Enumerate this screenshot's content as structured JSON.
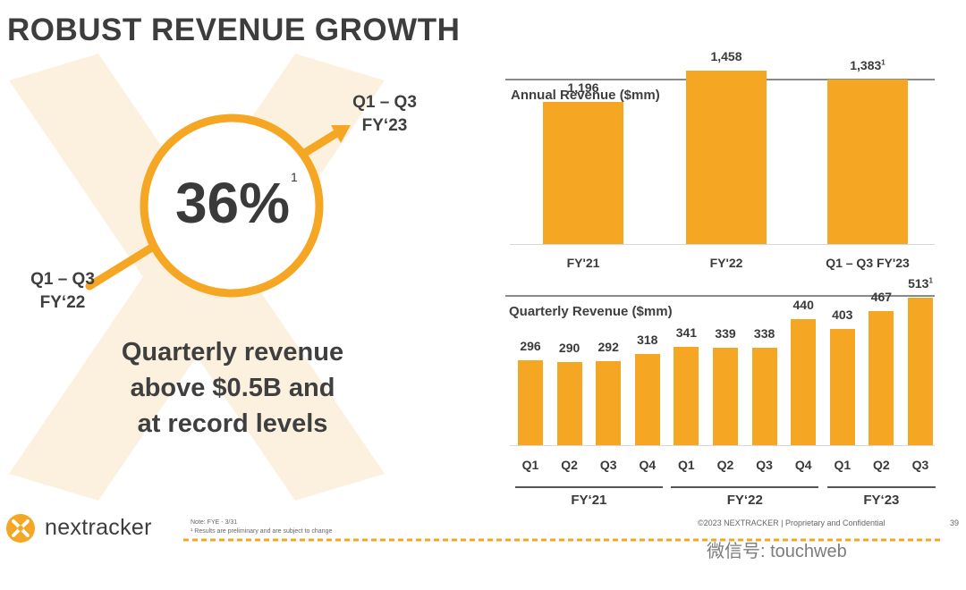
{
  "title": "ROBUST REVENUE GROWTH",
  "growth": {
    "start_label": "Q1 – Q3",
    "start_year": "FY‘22",
    "end_label": "Q1 – Q3",
    "end_year": "FY‘23",
    "value": "36%",
    "value_note": "1",
    "headline": [
      "Quarterly revenue",
      "above $0.5B and",
      "at record levels"
    ]
  },
  "chart_data": [
    {
      "type": "bar",
      "title": "Annual Revenue ($mm)",
      "categories": [
        "FY'21",
        "FY'22",
        "Q1 – Q3 FY'23"
      ],
      "values": [
        1196,
        1458,
        1383
      ],
      "value_labels": [
        "1,196",
        "1,458",
        "1,383"
      ],
      "footnotes": [
        "",
        "",
        "1"
      ],
      "ylim": [
        0,
        1500
      ],
      "color": "#f5a623"
    },
    {
      "type": "bar",
      "title": "Quarterly Revenue ($mm)",
      "categories": [
        "Q1",
        "Q2",
        "Q3",
        "Q4",
        "Q1",
        "Q2",
        "Q3",
        "Q4",
        "Q1",
        "Q2",
        "Q3"
      ],
      "values": [
        296,
        290,
        292,
        318,
        341,
        339,
        338,
        440,
        403,
        467,
        513
      ],
      "value_labels": [
        "296",
        "290",
        "292",
        "318",
        "341",
        "339",
        "338",
        "440",
        "403",
        "467",
        "513"
      ],
      "footnotes": [
        "",
        "",
        "",
        "",
        "",
        "",
        "",
        "",
        "",
        "",
        "1"
      ],
      "groups": [
        {
          "label": "FY‘21",
          "count": 4
        },
        {
          "label": "FY‘22",
          "count": 4
        },
        {
          "label": "FY‘23",
          "count": 3
        }
      ],
      "ylim": [
        0,
        560
      ],
      "color": "#f5a623"
    }
  ],
  "footer": {
    "brand": "nextracker",
    "note_line1": "Note: FYE - 3/31",
    "note_line2": "¹ Results are preliminary and are subject to change",
    "copyright": "©2023 NEXTRACKER | Proprietary and Confidential",
    "page": "39",
    "watermark": "微信号: touchweb"
  },
  "colors": {
    "accent": "#f5a623",
    "accent_light": "#fdf0dc",
    "text": "#3f3f3f"
  }
}
